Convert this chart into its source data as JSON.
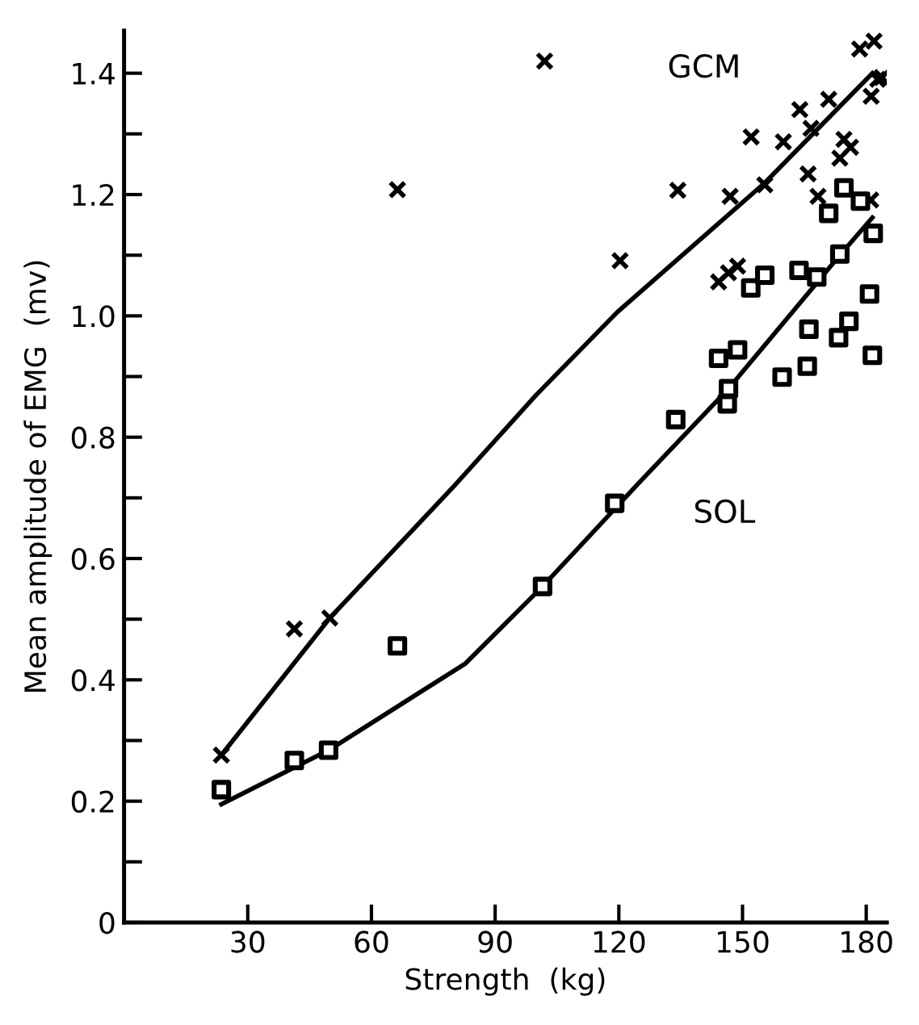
{
  "chart_data": {
    "type": "scatter",
    "xlabel": "Strength  (kg)",
    "ylabel": "Mean amplitude of EMG  (mv)",
    "xlim": [
      0,
      185
    ],
    "ylim": [
      0,
      1.47
    ],
    "xticks": [
      30,
      60,
      90,
      120,
      150,
      180
    ],
    "yticks": [
      0,
      {
        "value": 0.1,
        "label": null
      },
      0.2,
      {
        "value": 0.3,
        "label": null
      },
      0.4,
      {
        "value": 0.5,
        "label": null
      },
      0.6,
      {
        "value": 0.7,
        "label": null
      },
      0.8,
      {
        "value": 0.9,
        "label": null
      },
      {
        "value": 1,
        "label": "1.0"
      },
      {
        "value": 1.1,
        "label": null
      },
      1.2,
      {
        "value": 1.3,
        "label": null
      },
      1.4
    ],
    "grid": false,
    "legend": false,
    "series": [
      {
        "marker": "cross",
        "color": "#000000",
        "x": [
          23.6,
          41.3,
          49.9,
          66.3,
          102,
          120.3,
          134.3,
          144.2,
          146.6,
          148.8,
          147.0,
          155.4,
          152.1,
          159.9,
          165.9,
          168.3,
          166.6,
          163.9,
          170.9,
          173.6,
          174.6,
          176.2,
          178.4,
          181.9,
          181.2,
          182.8,
          183.8,
          181.1
        ],
        "values": [
          0.276,
          0.484,
          0.502,
          1.208,
          1.42,
          1.091,
          1.207,
          1.056,
          1.071,
          1.082,
          1.197,
          1.216,
          1.295,
          1.287,
          1.234,
          1.197,
          1.309,
          1.34,
          1.357,
          1.26,
          1.291,
          1.278,
          1.44,
          1.453,
          1.362,
          1.39,
          1.393,
          1.191
        ]
      },
      {
        "marker": "square",
        "color": "#000000",
        "x": [
          23.6,
          41.3,
          49.6,
          66.3,
          101.5,
          119.0,
          133.8,
          146.3,
          146.6,
          144.2,
          148.8,
          152.0,
          155.4,
          159.6,
          163.7,
          165.7,
          166.1,
          168.0,
          170.9,
          173.3,
          173.6,
          174.6,
          175.8,
          178.6,
          180.8,
          181.5,
          181.7
        ],
        "values": [
          0.219,
          0.267,
          0.284,
          0.456,
          0.554,
          0.691,
          0.829,
          0.855,
          0.88,
          0.93,
          0.944,
          1.046,
          1.067,
          0.899,
          1.075,
          0.917,
          0.978,
          1.064,
          1.169,
          0.964,
          1.102,
          1.211,
          0.991,
          1.189,
          1.036,
          0.935,
          1.136
        ]
      },
      {
        "type": "line",
        "name": "GCM",
        "marker": "none",
        "color": "#000000",
        "x": [
          23.6,
          49.9,
          80.1,
          100,
          119.6,
          155.2,
          181.5
        ],
        "values": [
          0.276,
          0.502,
          0.72,
          0.87,
          1.006,
          1.218,
          1.4
        ]
      },
      {
        "type": "line",
        "name": "SOL",
        "marker": "none",
        "color": "#000000",
        "x": [
          23.6,
          49.6,
          82.8,
          101.5,
          124.9,
          146.6,
          173.6,
          181.5
        ],
        "values": [
          0.195,
          0.284,
          0.427,
          0.554,
          0.725,
          0.88,
          1.1,
          1.162
        ]
      }
    ]
  }
}
